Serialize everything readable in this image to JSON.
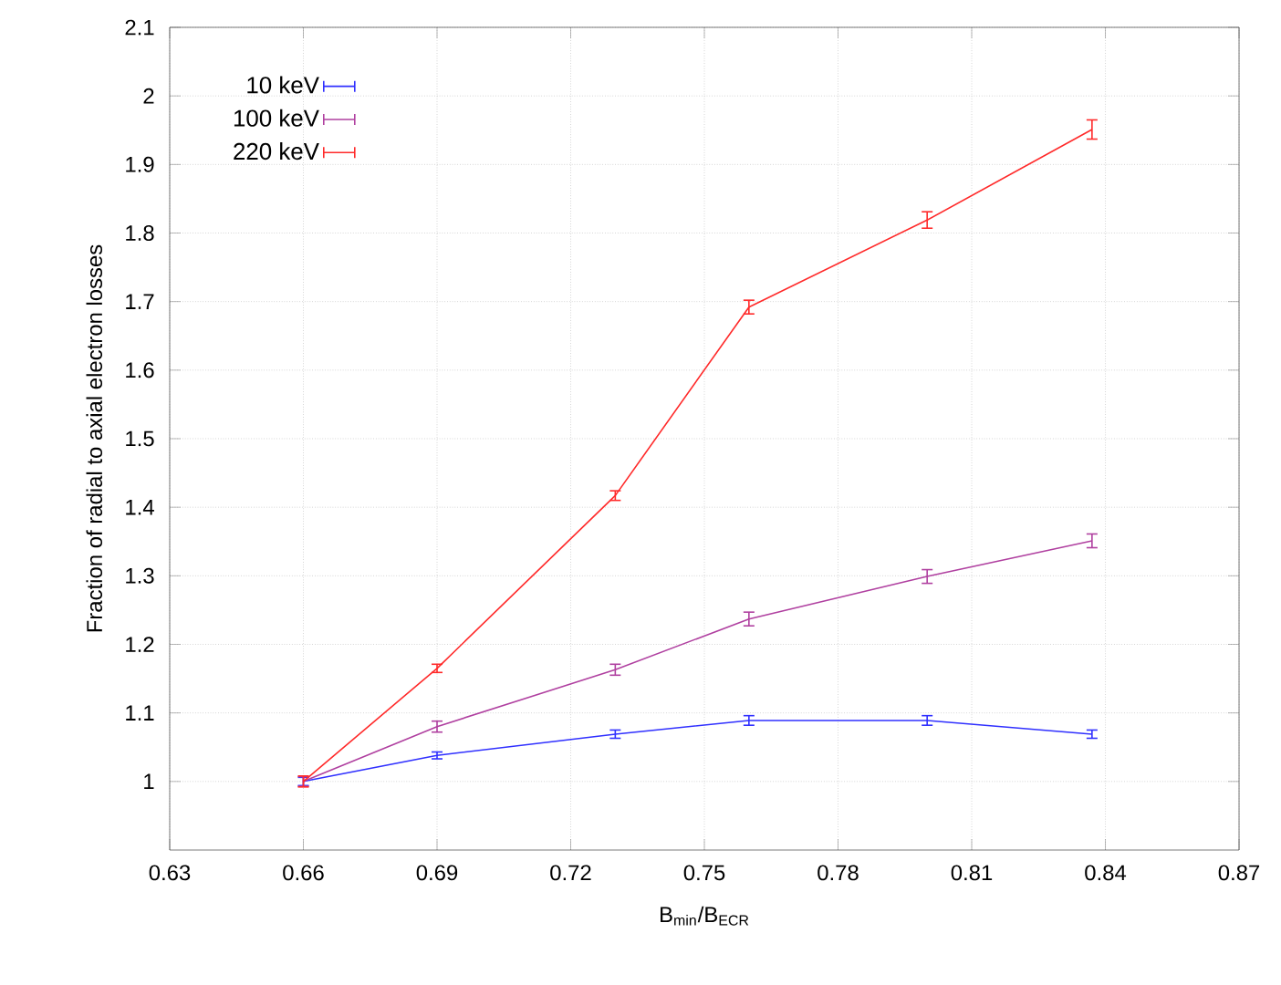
{
  "chart_data": {
    "type": "line",
    "xlabel": "B$_{min}$/B$_{ECR}$",
    "ylabel": "Fraction of radial to axial electron losses",
    "x": [
      0.66,
      0.69,
      0.73,
      0.76,
      0.8,
      0.837
    ],
    "series": [
      {
        "name": "10 keV",
        "color": "#3030ff",
        "values": [
          1.0,
          1.038,
          1.069,
          1.089,
          1.089,
          1.069
        ],
        "errors": [
          0.006,
          0.005,
          0.006,
          0.007,
          0.007,
          0.006
        ]
      },
      {
        "name": "100 keV",
        "color": "#b040a0",
        "values": [
          1.0,
          1.08,
          1.163,
          1.237,
          1.299,
          1.351
        ],
        "errors": [
          0.007,
          0.008,
          0.008,
          0.01,
          0.01,
          0.01
        ]
      },
      {
        "name": "220 keV",
        "color": "#ff2a2a",
        "values": [
          1.0,
          1.165,
          1.417,
          1.692,
          1.819,
          1.951
        ],
        "errors": [
          0.008,
          0.006,
          0.007,
          0.01,
          0.012,
          0.014
        ]
      }
    ],
    "xlim": [
      0.63,
      0.87
    ],
    "ylim": [
      0.9,
      2.1
    ],
    "xticks": [
      0.63,
      0.66,
      0.69,
      0.72,
      0.75,
      0.78,
      0.81,
      0.84,
      0.87
    ],
    "yticks": [
      1,
      1.1,
      1.2,
      1.3,
      1.4,
      1.5,
      1.6,
      1.7,
      1.8,
      1.9,
      2,
      2.1
    ],
    "grid": true,
    "legend": "top left",
    "marker": "none",
    "line_style": "solid"
  }
}
